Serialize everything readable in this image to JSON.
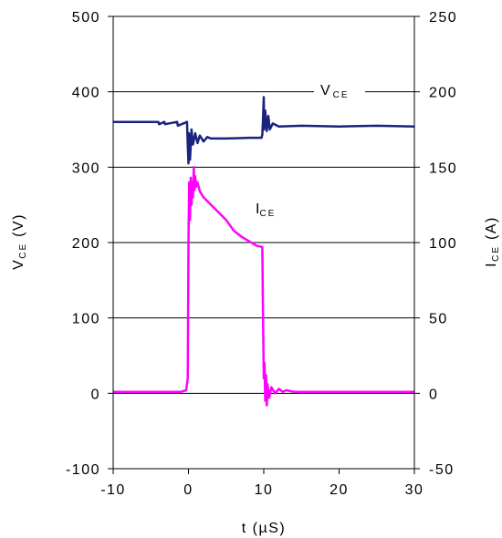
{
  "chart_data": {
    "type": "line",
    "title": "",
    "xlabel": "t (µS)",
    "ylabel_left": {
      "main": "V",
      "sub": "CE",
      "unit": " (V)"
    },
    "ylabel_right": {
      "main": "I",
      "sub": "CE",
      "unit": " (A)"
    },
    "xlim": [
      -10,
      30
    ],
    "ylim_left": [
      -100,
      500
    ],
    "ylim_right": [
      -50,
      250
    ],
    "x_ticks": [
      "-10",
      "0",
      "10",
      "20",
      "30"
    ],
    "y_left_ticks": [
      "-100",
      "0",
      "100",
      "200",
      "300",
      "400",
      "500"
    ],
    "y_right_ticks": [
      "-50",
      "0",
      "50",
      "100",
      "150",
      "200",
      "250"
    ],
    "grid": "horizontal",
    "annotations": {
      "vce": {
        "main": "V",
        "sub": "CE"
      },
      "ice": {
        "main": "I",
        "sub": "CE"
      }
    },
    "series": [
      {
        "name": "VCE",
        "axis": "left",
        "color": "#1a237e",
        "x": [
          -10,
          -4,
          -3.9,
          -3.2,
          -3.1,
          -1.5,
          -1.4,
          -0.2,
          -0.1,
          0,
          0.05,
          0.2,
          0.4,
          0.6,
          0.9,
          1.2,
          1.5,
          2,
          2.5,
          3,
          5,
          8,
          9.7,
          9.8,
          9.9,
          10.0,
          10.05,
          10.2,
          10.4,
          10.6,
          10.8,
          11.2,
          12,
          15,
          20,
          25,
          30
        ],
        "y": [
          360,
          360,
          357,
          360,
          357,
          360,
          355,
          360,
          330,
          305,
          345,
          310,
          350,
          330,
          345,
          332,
          342,
          334,
          340,
          338,
          338,
          339,
          339,
          343,
          365,
          393,
          350,
          375,
          348,
          368,
          350,
          358,
          354,
          355,
          354,
          355,
          354
        ]
      },
      {
        "name": "ICE",
        "axis": "right",
        "color": "#ff00ff",
        "x": [
          -10,
          -5,
          -1,
          -0.3,
          -0.1,
          0,
          0.1,
          0.2,
          0.3,
          0.4,
          0.5,
          0.6,
          0.7,
          0.8,
          0.9,
          1.0,
          1.2,
          1.5,
          2,
          3,
          4,
          5,
          6,
          7,
          8,
          9,
          9.8,
          9.9,
          10.0,
          10.1,
          10.2,
          10.3,
          10.4,
          10.5,
          10.7,
          11,
          11.5,
          12,
          12.5,
          13,
          14,
          20,
          25,
          30
        ],
        "y": [
          1,
          1,
          1,
          2,
          10,
          100,
          140,
          115,
          143,
          125,
          140,
          130,
          150,
          135,
          144,
          137,
          140,
          134,
          130,
          125,
          120,
          115,
          108,
          104,
          101,
          98,
          97,
          50,
          10,
          20,
          -5,
          12,
          -8,
          6,
          -3,
          4,
          0,
          3,
          1,
          2,
          1,
          1,
          1,
          1
        ]
      }
    ]
  }
}
